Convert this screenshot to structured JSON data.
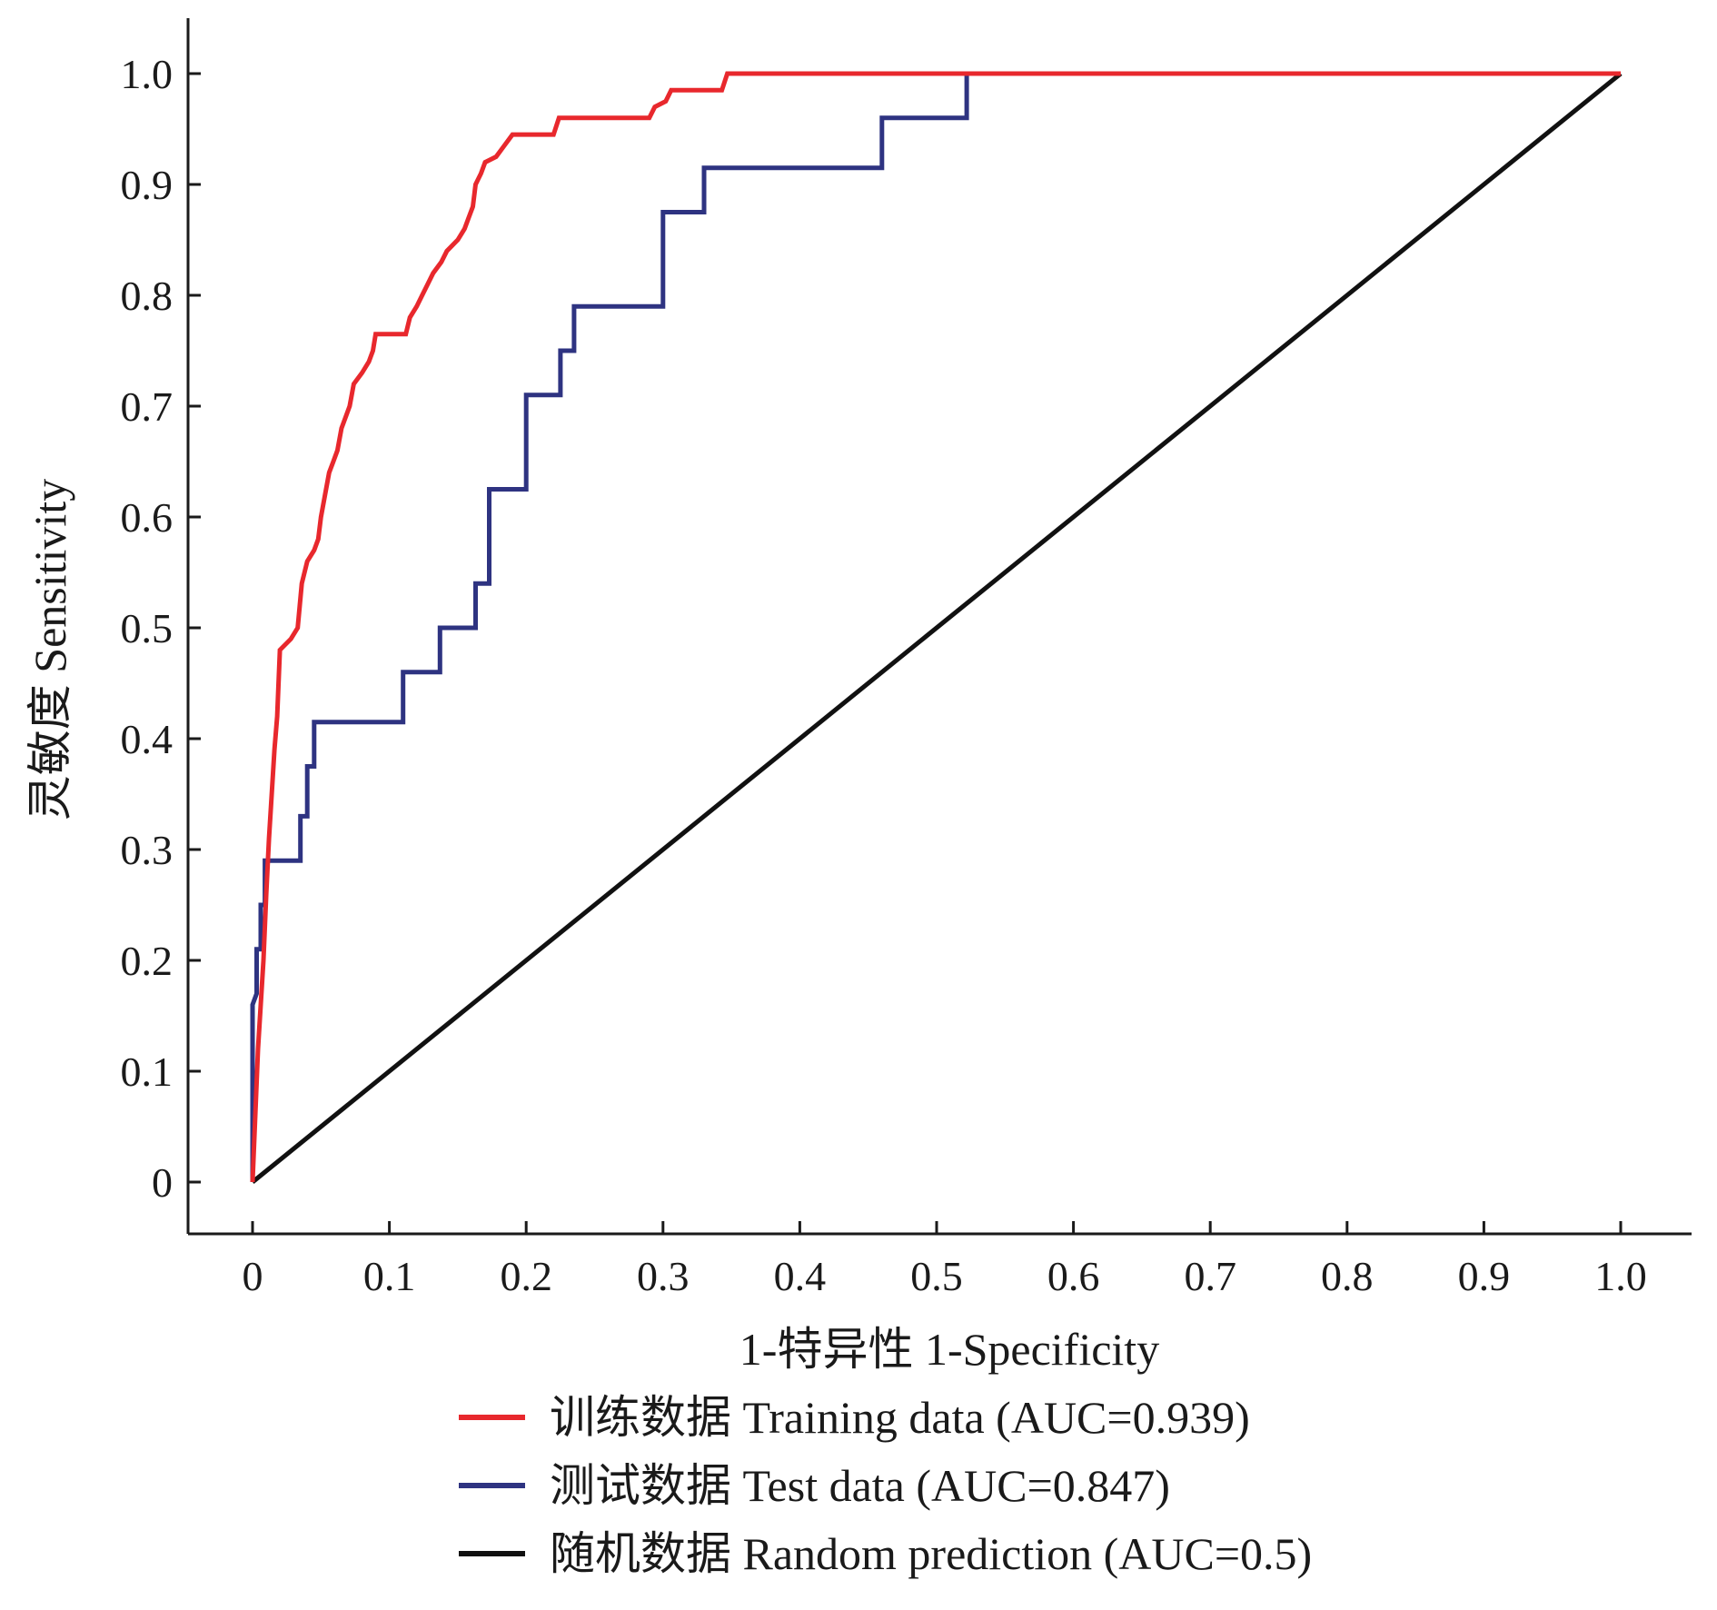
{
  "chart_data": {
    "type": "line",
    "title": "",
    "xlabel": "1-特异性 1-Specificity",
    "ylabel": "灵敏度  Sensitivity",
    "xlim": [
      0,
      1.0
    ],
    "ylim": [
      0,
      1.0
    ],
    "x_ticks": [
      "0",
      "0.1",
      "0.2",
      "0.3",
      "0.4",
      "0.5",
      "0.6",
      "0.7",
      "0.8",
      "0.9",
      "1.0"
    ],
    "y_ticks": [
      "0",
      "0.1",
      "0.2",
      "0.3",
      "0.4",
      "0.5",
      "0.6",
      "0.7",
      "0.8",
      "0.9",
      "1.0"
    ],
    "grid": false,
    "legend_position": "bottom",
    "series": [
      {
        "name": "训练数据 Training data (AUC=0.939)",
        "color": "#e8282d",
        "points": [
          [
            0,
            0
          ],
          [
            0.002,
            0.06
          ],
          [
            0.004,
            0.12
          ],
          [
            0.006,
            0.16
          ],
          [
            0.008,
            0.2
          ],
          [
            0.01,
            0.26
          ],
          [
            0.012,
            0.31
          ],
          [
            0.014,
            0.35
          ],
          [
            0.016,
            0.39
          ],
          [
            0.018,
            0.42
          ],
          [
            0.02,
            0.48
          ],
          [
            0.028,
            0.49
          ],
          [
            0.033,
            0.5
          ],
          [
            0.036,
            0.54
          ],
          [
            0.04,
            0.56
          ],
          [
            0.045,
            0.57
          ],
          [
            0.048,
            0.58
          ],
          [
            0.05,
            0.6
          ],
          [
            0.053,
            0.62
          ],
          [
            0.056,
            0.64
          ],
          [
            0.059,
            0.65
          ],
          [
            0.062,
            0.66
          ],
          [
            0.065,
            0.68
          ],
          [
            0.068,
            0.69
          ],
          [
            0.071,
            0.7
          ],
          [
            0.074,
            0.72
          ],
          [
            0.08,
            0.73
          ],
          [
            0.085,
            0.74
          ],
          [
            0.088,
            0.75
          ],
          [
            0.09,
            0.765
          ],
          [
            0.112,
            0.765
          ],
          [
            0.115,
            0.78
          ],
          [
            0.12,
            0.79
          ],
          [
            0.124,
            0.8
          ],
          [
            0.128,
            0.81
          ],
          [
            0.132,
            0.82
          ],
          [
            0.138,
            0.83
          ],
          [
            0.142,
            0.84
          ],
          [
            0.15,
            0.85
          ],
          [
            0.155,
            0.86
          ],
          [
            0.158,
            0.87
          ],
          [
            0.161,
            0.88
          ],
          [
            0.163,
            0.9
          ],
          [
            0.167,
            0.91
          ],
          [
            0.17,
            0.92
          ],
          [
            0.178,
            0.925
          ],
          [
            0.184,
            0.935
          ],
          [
            0.19,
            0.945
          ],
          [
            0.22,
            0.945
          ],
          [
            0.224,
            0.96
          ],
          [
            0.29,
            0.96
          ],
          [
            0.294,
            0.97
          ],
          [
            0.302,
            0.975
          ],
          [
            0.306,
            0.985
          ],
          [
            0.343,
            0.985
          ],
          [
            0.347,
            1.0
          ],
          [
            1.0,
            1.0
          ]
        ]
      },
      {
        "name": "测试数据 Test data (AUC=0.847)",
        "color": "#2e3381",
        "points": [
          [
            0,
            0
          ],
          [
            0,
            0.16
          ],
          [
            0.003,
            0.17
          ],
          [
            0.003,
            0.21
          ],
          [
            0.006,
            0.21
          ],
          [
            0.006,
            0.25
          ],
          [
            0.009,
            0.25
          ],
          [
            0.009,
            0.29
          ],
          [
            0.035,
            0.29
          ],
          [
            0.035,
            0.33
          ],
          [
            0.04,
            0.33
          ],
          [
            0.04,
            0.375
          ],
          [
            0.045,
            0.375
          ],
          [
            0.045,
            0.415
          ],
          [
            0.11,
            0.415
          ],
          [
            0.11,
            0.46
          ],
          [
            0.137,
            0.46
          ],
          [
            0.137,
            0.5
          ],
          [
            0.163,
            0.5
          ],
          [
            0.163,
            0.54
          ],
          [
            0.173,
            0.54
          ],
          [
            0.173,
            0.625
          ],
          [
            0.2,
            0.625
          ],
          [
            0.2,
            0.71
          ],
          [
            0.225,
            0.71
          ],
          [
            0.225,
            0.75
          ],
          [
            0.235,
            0.75
          ],
          [
            0.235,
            0.79
          ],
          [
            0.3,
            0.79
          ],
          [
            0.3,
            0.875
          ],
          [
            0.33,
            0.875
          ],
          [
            0.33,
            0.915
          ],
          [
            0.46,
            0.915
          ],
          [
            0.46,
            0.96
          ],
          [
            0.522,
            0.96
          ],
          [
            0.522,
            1.0
          ],
          [
            1.0,
            1.0
          ]
        ]
      },
      {
        "name": "随机数据 Random prediction (AUC=0.5)",
        "color": "#111111",
        "points": [
          [
            0,
            0
          ],
          [
            1.0,
            1.0
          ]
        ]
      }
    ]
  }
}
